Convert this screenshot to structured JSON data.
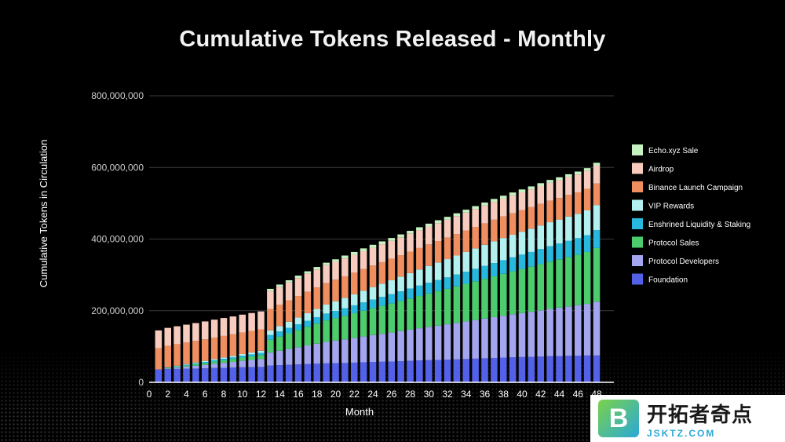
{
  "chart_data": {
    "type": "bar",
    "stacked": true,
    "title": "Cumulative Tokens Released - Monthly",
    "xlabel": "Month",
    "ylabel": "Cumulative Tokens in Circulation",
    "ylim": [
      0,
      800000000
    ],
    "yticks": [
      0,
      200000000,
      400000000,
      600000000,
      800000000
    ],
    "ytick_labels": [
      "0",
      "200,000,000",
      "400,000,000",
      "600,000,000",
      "800,000,000"
    ],
    "x": [
      1,
      2,
      3,
      4,
      5,
      6,
      7,
      8,
      9,
      10,
      11,
      12,
      13,
      14,
      15,
      16,
      17,
      18,
      19,
      20,
      21,
      22,
      23,
      24,
      25,
      26,
      27,
      28,
      29,
      30,
      31,
      32,
      33,
      34,
      35,
      36,
      37,
      38,
      39,
      40,
      41,
      42,
      43,
      44,
      45,
      46,
      47,
      48
    ],
    "xticks": [
      0,
      2,
      4,
      6,
      8,
      10,
      12,
      14,
      16,
      18,
      20,
      22,
      24,
      26,
      28,
      30,
      32,
      34,
      36,
      38,
      40,
      42,
      44,
      46,
      48
    ],
    "xtick_labels": [
      "0",
      "2",
      "4",
      "6",
      "8",
      "10",
      "12",
      "14",
      "16",
      "18",
      "20",
      "22",
      "24",
      "26",
      "28",
      "30",
      "32",
      "34",
      "36",
      "38",
      "40",
      "42",
      "44",
      "46",
      "48"
    ],
    "grid": "horizontal",
    "legend_position": "right",
    "series": [
      {
        "name": "Foundation",
        "color": "#5360e8",
        "values": [
          36000000,
          37000000,
          37500000,
          38000000,
          38500000,
          39000000,
          40000000,
          40500000,
          41000000,
          42000000,
          42500000,
          43000000,
          47000000,
          48000000,
          49000000,
          50000000,
          51000000,
          52000000,
          53000000,
          53500000,
          54000000,
          55000000,
          56000000,
          57000000,
          57500000,
          58000000,
          59000000,
          60000000,
          61000000,
          62000000,
          62500000,
          63000000,
          64000000,
          65000000,
          66000000,
          67000000,
          68000000,
          69000000,
          70000000,
          70500000,
          71000000,
          72000000,
          73000000,
          73500000,
          74000000,
          74500000,
          75000000,
          75000000
        ]
      },
      {
        "name": "Protocol Developers",
        "color": "#a3a6ee",
        "values": [
          0,
          2000000,
          4000000,
          6000000,
          8000000,
          10000000,
          12000000,
          14000000,
          16000000,
          18000000,
          20000000,
          22000000,
          36000000,
          40000000,
          44000000,
          48000000,
          52000000,
          56000000,
          60000000,
          63000000,
          66000000,
          69000000,
          72000000,
          75000000,
          78000000,
          81000000,
          84000000,
          87000000,
          90000000,
          93000000,
          96000000,
          99000000,
          102000000,
          105000000,
          108000000,
          111000000,
          114000000,
          117000000,
          120000000,
          123000000,
          126000000,
          129000000,
          132000000,
          135000000,
          138000000,
          141000000,
          144000000,
          150000000
        ]
      },
      {
        "name": "Protocol Sales",
        "color": "#4ccc6c",
        "values": [
          0,
          1000000,
          2000000,
          3000000,
          4000000,
          5000000,
          6000000,
          7000000,
          8000000,
          9000000,
          10000000,
          11000000,
          36000000,
          40000000,
          44000000,
          48000000,
          52000000,
          56000000,
          60000000,
          63000000,
          66000000,
          69000000,
          72000000,
          75000000,
          78000000,
          81000000,
          84000000,
          87000000,
          90000000,
          93000000,
          96000000,
          99000000,
          102000000,
          105000000,
          108000000,
          111000000,
          114000000,
          117000000,
          120000000,
          123000000,
          126000000,
          129000000,
          132000000,
          135000000,
          138000000,
          141000000,
          145000000,
          150000000
        ]
      },
      {
        "name": "Enshrined Liquidity & Staking",
        "color": "#27b8de",
        "values": [
          0,
          1000000,
          1500000,
          2000000,
          2500000,
          3000000,
          3500000,
          4000000,
          4500000,
          5000000,
          5500000,
          6000000,
          13000000,
          14000000,
          15000000,
          16000000,
          17000000,
          18000000,
          19000000,
          20000000,
          21000000,
          22000000,
          23000000,
          24000000,
          25000000,
          26000000,
          27000000,
          28000000,
          29000000,
          30000000,
          31000000,
          32000000,
          33000000,
          34000000,
          35000000,
          36000000,
          37000000,
          38000000,
          39000000,
          40000000,
          41000000,
          42000000,
          43000000,
          44000000,
          45000000,
          46000000,
          47000000,
          50000000
        ]
      },
      {
        "name": "VIP Rewards",
        "color": "#b3f1f1",
        "values": [
          0,
          1000000,
          1500000,
          2000000,
          2500000,
          3000000,
          3500000,
          4000000,
          4500000,
          5000000,
          5500000,
          6000000,
          13000000,
          15000000,
          17000000,
          19000000,
          21000000,
          23000000,
          25000000,
          27000000,
          29000000,
          31000000,
          33000000,
          35000000,
          37000000,
          39000000,
          41000000,
          43000000,
          45000000,
          47000000,
          49000000,
          51000000,
          53000000,
          55000000,
          57000000,
          59000000,
          61000000,
          62000000,
          63000000,
          64000000,
          65000000,
          66000000,
          67000000,
          67000000,
          68000000,
          68000000,
          69000000,
          70000000
        ]
      },
      {
        "name": "Binance Launch Campaign",
        "color": "#ef8e5e",
        "values": [
          59000000,
          60000000,
          60000000,
          60000000,
          60000000,
          60000000,
          60000000,
          60000000,
          60000000,
          60000000,
          60000000,
          60000000,
          60000000,
          60000000,
          60000000,
          60000000,
          60000000,
          60000000,
          60000000,
          60000000,
          60000000,
          60000000,
          60000000,
          60000000,
          60000000,
          60000000,
          60000000,
          60000000,
          60000000,
          60000000,
          60000000,
          60000000,
          60000000,
          60000000,
          60000000,
          60000000,
          60000000,
          60000000,
          60000000,
          60000000,
          60000000,
          60000000,
          60000000,
          60000000,
          60000000,
          60000000,
          60000000,
          60000000
        ]
      },
      {
        "name": "Airdrop",
        "color": "#f7cbbd",
        "values": [
          50000000,
          50000000,
          50000000,
          50000000,
          50000000,
          50000000,
          50000000,
          50000000,
          50000000,
          50000000,
          50000000,
          50000000,
          50000000,
          50000000,
          50000000,
          50000000,
          50000000,
          50000000,
          50000000,
          50000000,
          50000000,
          50000000,
          50000000,
          50000000,
          50000000,
          50000000,
          50000000,
          50000000,
          50000000,
          50000000,
          50000000,
          50000000,
          50000000,
          50000000,
          50000000,
          50000000,
          50000000,
          50000000,
          50000000,
          50000000,
          50000000,
          50000000,
          50000000,
          50000000,
          50000000,
          50000000,
          50000000,
          50000000
        ]
      },
      {
        "name": "Echo.xyz Sale",
        "color": "#c6f2c2",
        "values": [
          0,
          0,
          0,
          0,
          0,
          0,
          0,
          0,
          0,
          0,
          0,
          0,
          6000000,
          6000000,
          6000000,
          7000000,
          7000000,
          7000000,
          7000000,
          7000000,
          8000000,
          8000000,
          8000000,
          8000000,
          8000000,
          8000000,
          8000000,
          8000000,
          8000000,
          8000000,
          8000000,
          8000000,
          8000000,
          8000000,
          8000000,
          8000000,
          8000000,
          8000000,
          8000000,
          8000000,
          8000000,
          8000000,
          8000000,
          8000000,
          8000000,
          8000000,
          8000000,
          8000000
        ]
      }
    ]
  },
  "watermark": {
    "logo_letter": "B",
    "name": "开拓者奇点",
    "url": "JSKTZ.COM"
  }
}
